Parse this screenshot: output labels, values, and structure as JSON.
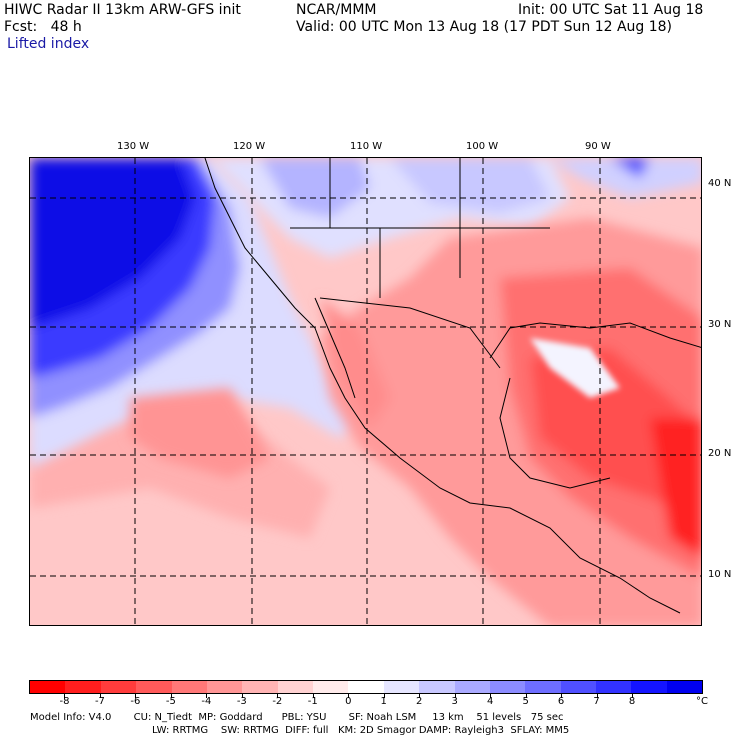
{
  "header": {
    "title_line1": "HIWC Radar II 13km ARW-GFS init",
    "org": "NCAR/MMM",
    "init": "Init: 00 UTC Sat 11 Aug 18",
    "fcst": "Fcst:   48 h",
    "valid": "Valid: 00 UTC Mon 13 Aug 18 (17 PDT Sun 12 Aug 18)",
    "field": "Lifted index"
  },
  "map": {
    "lon_labels": [
      "130 W",
      "120 W",
      "110 W",
      "100 W",
      "90 W"
    ],
    "lat_labels": [
      "40 N",
      "30 N",
      "20 N",
      "10 N"
    ]
  },
  "legend": {
    "unit": "°C",
    "tick_labels": [
      "-8",
      "-7",
      "-6",
      "-5",
      "-4",
      "-3",
      "-2",
      "-1",
      "0",
      "1",
      "2",
      "3",
      "4",
      "5",
      "6",
      "7",
      "8"
    ],
    "colors": [
      "#ff0000",
      "#ff1e1e",
      "#ff3c3c",
      "#ff5a5a",
      "#ff7878",
      "#ff9696",
      "#ffb4b4",
      "#ffd2d2",
      "#ffebeb",
      "#ffffff",
      "#e6e6ff",
      "#c8c8ff",
      "#aaaaff",
      "#8c8cff",
      "#6e6eff",
      "#5050ff",
      "#3232ff",
      "#1414ff",
      "#0000f0"
    ]
  },
  "footer": {
    "line1": "Model Info: V4.0       CU: N_Tiedt  MP: Goddard      PBL: YSU       SF: Noah LSM     13 km    51 levels   75 sec",
    "line2": "LW: RRTMG    SW: RRTMG  DIFF: full   KM: 2D Smagor DAMP: Rayleigh3  SFLAY: MM5"
  }
}
